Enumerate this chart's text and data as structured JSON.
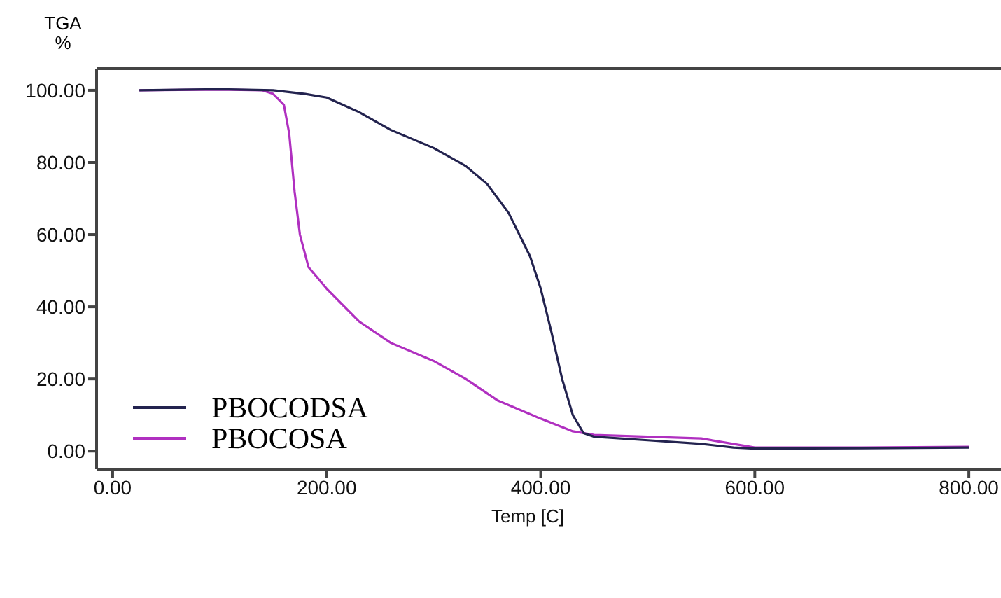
{
  "chart_data": {
    "type": "line",
    "xlabel": "Temp  [C]",
    "ylabel": "TGA %",
    "xlim": [
      -15,
      830
    ],
    "ylim": [
      -5,
      106
    ],
    "xticks": [
      {
        "value": 0,
        "label": "0.00"
      },
      {
        "value": 200,
        "label": "200.00"
      },
      {
        "value": 400,
        "label": "400.00"
      },
      {
        "value": 600,
        "label": "600.00"
      },
      {
        "value": 800,
        "label": "800.00"
      }
    ],
    "yticks": [
      {
        "value": 0,
        "label": "0.00"
      },
      {
        "value": 20,
        "label": "20.00"
      },
      {
        "value": 40,
        "label": "40.00"
      },
      {
        "value": 60,
        "label": "60.00"
      },
      {
        "value": 80,
        "label": "80.00"
      },
      {
        "value": 100,
        "label": "100.00"
      }
    ],
    "grid": false,
    "legend": "bottom left",
    "marker": "none",
    "line_style": "solid",
    "series": [
      {
        "name": "PBOCODSA",
        "color": "#23234f",
        "x": [
          25,
          100,
          150,
          180,
          200,
          230,
          260,
          300,
          330,
          350,
          370,
          390,
          400,
          410,
          420,
          430,
          440,
          450,
          500,
          550,
          580,
          600,
          700,
          800
        ],
        "values": [
          100,
          100.3,
          100,
          99,
          98,
          94,
          89,
          84,
          79,
          74,
          66,
          54,
          45,
          33,
          20,
          10,
          5,
          4,
          3,
          2,
          1,
          0.7,
          0.8,
          1
        ]
      },
      {
        "name": "PBOCOSA",
        "color": "#b030c0",
        "x": [
          25,
          100,
          140,
          150,
          160,
          165,
          170,
          175,
          183,
          200,
          230,
          260,
          300,
          330,
          360,
          400,
          430,
          450,
          500,
          550,
          600,
          700,
          800
        ],
        "values": [
          100,
          100.2,
          100,
          99,
          96,
          88,
          72,
          60,
          51,
          45,
          36,
          30,
          25,
          20,
          14,
          9,
          5.5,
          4.5,
          4,
          3.5,
          1,
          1,
          1.2
        ]
      }
    ]
  }
}
